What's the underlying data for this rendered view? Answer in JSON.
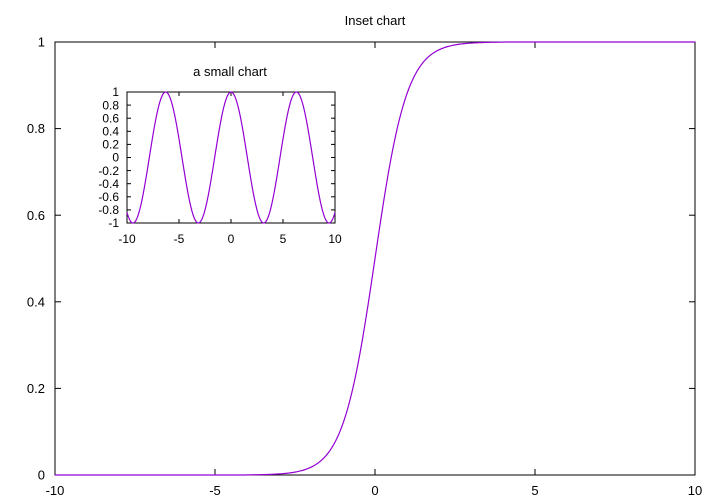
{
  "chart_data": [
    {
      "type": "line",
      "title": "Inset chart",
      "xlabel": "",
      "ylabel": "",
      "xlim": [
        -10,
        10
      ],
      "ylim": [
        0,
        1
      ],
      "xticks": [
        -10,
        -5,
        0,
        5,
        10
      ],
      "yticks": [
        0,
        0.2,
        0.4,
        0.6,
        0.8,
        1
      ],
      "xtick_labels": [
        "-10",
        "-5",
        "0",
        "5",
        "10"
      ],
      "ytick_labels": [
        "0",
        "0.2",
        "0.4",
        "0.6",
        "0.8",
        "1"
      ],
      "grid": false,
      "legend": "none",
      "series": [
        {
          "color": "#9400d3",
          "x": [
            -10,
            -4,
            -3.5,
            -3,
            -2.5,
            -2,
            -1.5,
            -1,
            -0.5,
            0,
            0.5,
            1,
            1.5,
            2,
            2.5,
            3,
            3.5,
            4,
            10
          ],
          "y": [
            0,
            0,
            0.0003,
            0.0011,
            0.0039,
            0.0116,
            0.0297,
            0.0673,
            0.1357,
            0.5,
            0.8643,
            0.9327,
            0.9703,
            0.9884,
            0.9961,
            0.9989,
            0.9997,
            1,
            1
          ]
        }
      ]
    },
    {
      "type": "line",
      "title": "a small chart",
      "xlabel": "",
      "ylabel": "",
      "xlim": [
        -10,
        10
      ],
      "ylim": [
        -1,
        1
      ],
      "xticks": [
        -10,
        -5,
        0,
        5,
        10
      ],
      "yticks": [
        -1,
        -0.8,
        -0.6,
        -0.4,
        -0.2,
        0,
        0.2,
        0.4,
        0.6,
        0.8,
        1
      ],
      "xtick_labels": [
        "-10",
        "-5",
        "0",
        "5",
        "10"
      ],
      "ytick_labels": [
        "-1",
        "-0.8",
        "-0.6",
        "-0.4",
        "-0.2",
        "0",
        "0.2",
        "0.4",
        "0.6",
        "0.8",
        "1"
      ],
      "grid": false,
      "legend": "none",
      "series": [
        {
          "color": "#9400d3",
          "x": [
            -10,
            -9.42,
            -7.85,
            -6.28,
            -4.71,
            -3.14,
            -1.57,
            0,
            1.57,
            3.14,
            4.71,
            6.28,
            7.85,
            9.42,
            10
          ],
          "y": [
            -0.84,
            -1,
            0,
            1,
            0,
            -1,
            0,
            1,
            0,
            -1,
            0,
            1,
            0,
            -1,
            -0.84
          ]
        }
      ]
    }
  ]
}
